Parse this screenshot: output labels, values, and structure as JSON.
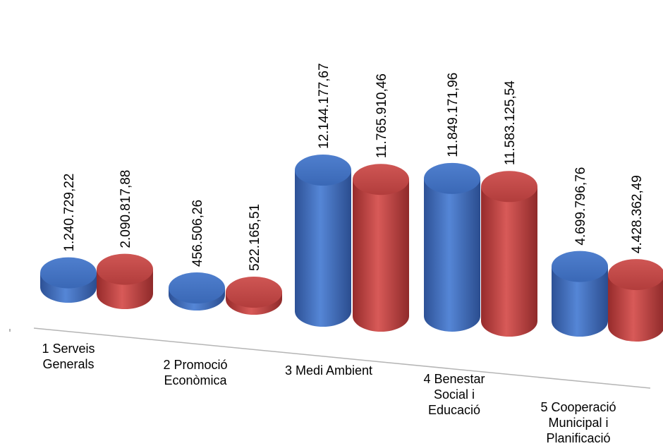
{
  "chart_data": {
    "type": "bar",
    "style": "3d-cylinder",
    "categories": [
      "1 Serveis Generals",
      "2 Promoció Econòmica",
      "3 Medi Ambient",
      "4 Benestar Social i Educació",
      "5 Cooperació Municipal i Planificació"
    ],
    "category_lines": [
      [
        "1 Serveis",
        "Generals"
      ],
      [
        "2 Promoció",
        "Econòmica"
      ],
      [
        "3 Medi Ambient"
      ],
      [
        "4 Benestar",
        "Social i",
        "Educació"
      ],
      [
        "5 Cooperació",
        "Municipal i",
        "Planificació"
      ]
    ],
    "series": [
      {
        "color": "#3f6fbf",
        "values": [
          1240729.22,
          456506.26,
          12144177.67,
          11849171.96,
          4699796.76
        ],
        "labels": [
          "1.240.729,22",
          "456.506,26",
          "12.144.177,67",
          "11.849.171,96",
          "4.699.796,76"
        ]
      },
      {
        "color": "#c0403f",
        "values": [
          2090817.88,
          522165.51,
          11765910.46,
          11583125.54,
          4428362.49
        ],
        "labels": [
          "2.090.817,88",
          "522.165,51",
          "11.765.910,46",
          "11.583.125,54",
          "4.428.362,49"
        ]
      }
    ],
    "title": "",
    "xlabel": "",
    "ylabel": "",
    "grid": false,
    "legend": "none"
  }
}
